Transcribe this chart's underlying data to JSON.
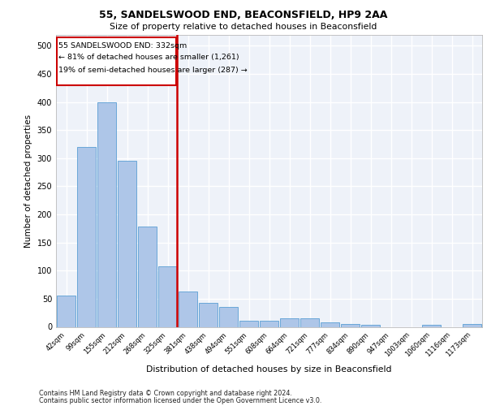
{
  "title": "55, SANDELSWOOD END, BEACONSFIELD, HP9 2AA",
  "subtitle": "Size of property relative to detached houses in Beaconsfield",
  "xlabel": "Distribution of detached houses by size in Beaconsfield",
  "ylabel": "Number of detached properties",
  "footer_line1": "Contains HM Land Registry data © Crown copyright and database right 2024.",
  "footer_line2": "Contains public sector information licensed under the Open Government Licence v3.0.",
  "categories": [
    "42sqm",
    "99sqm",
    "155sqm",
    "212sqm",
    "268sqm",
    "325sqm",
    "381sqm",
    "438sqm",
    "494sqm",
    "551sqm",
    "608sqm",
    "664sqm",
    "721sqm",
    "777sqm",
    "834sqm",
    "890sqm",
    "947sqm",
    "1003sqm",
    "1060sqm",
    "1116sqm",
    "1173sqm"
  ],
  "values": [
    55,
    320,
    400,
    295,
    178,
    107,
    63,
    42,
    36,
    11,
    11,
    15,
    15,
    8,
    5,
    3,
    0,
    0,
    3,
    0,
    5
  ],
  "bar_color": "#aec6e8",
  "bar_edge_color": "#5a9fd4",
  "property_line_index": 5,
  "property_line_color": "#cc0000",
  "annotation_text_line1": "55 SANDELSWOOD END: 332sqm",
  "annotation_text_line2": "← 81% of detached houses are smaller (1,261)",
  "annotation_text_line3": "19% of semi-detached houses are larger (287) →",
  "annotation_box_color": "#cc0000",
  "ylim": [
    0,
    520
  ],
  "yticks": [
    0,
    50,
    100,
    150,
    200,
    250,
    300,
    350,
    400,
    450,
    500
  ],
  "bg_color": "#eef2f9",
  "grid_color": "#ffffff"
}
